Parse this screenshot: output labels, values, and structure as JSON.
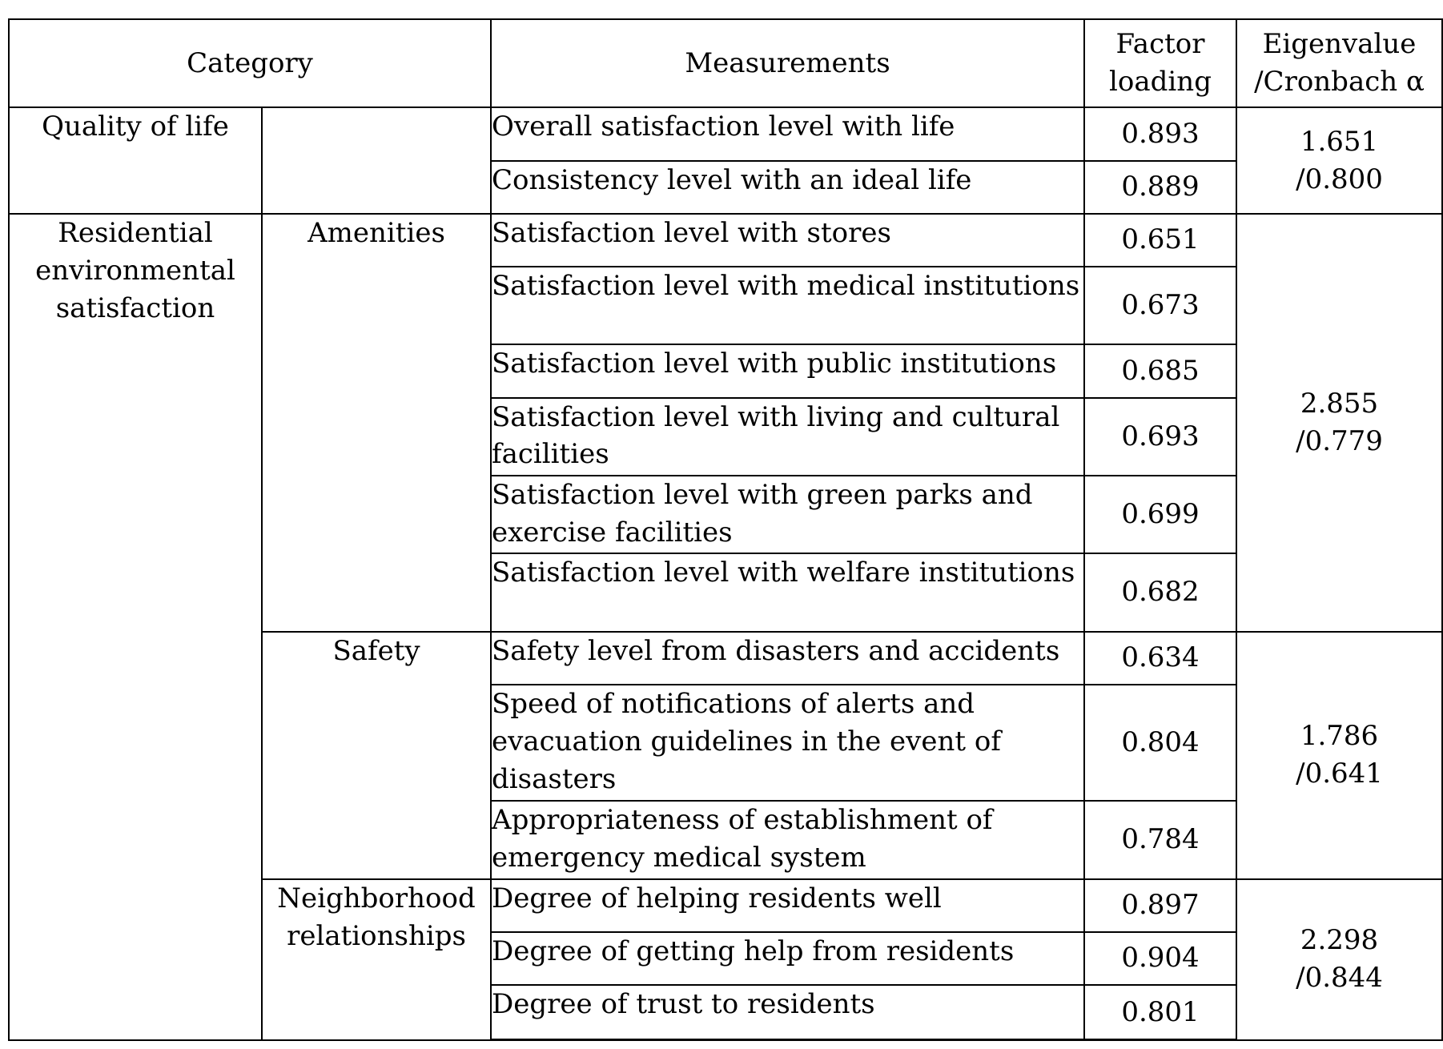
{
  "header": {
    "category": "Category",
    "measurements": "Measurements",
    "factor_loading": [
      "Factor",
      "loading"
    ],
    "eigenvalue": [
      "Eigenvalue",
      "/Cronbach α"
    ]
  },
  "groups": [
    {
      "category": "Quality of life",
      "subcategory": "",
      "eigen": [
        "1.651",
        "/0.800"
      ],
      "items": [
        {
          "measurement": "Overall satisfaction level with life",
          "loading": "0.893"
        },
        {
          "measurement": "Consistency level with an ideal life",
          "loading": "0.889"
        }
      ]
    },
    {
      "category": "Residential environmental satisfaction",
      "subcategory": "Amenities",
      "eigen": [
        "2.855",
        "/0.779"
      ],
      "items": [
        {
          "measurement": "Satisfaction level with stores",
          "loading": "0.651"
        },
        {
          "measurement": "Satisfaction level with medical institutions",
          "loading": "0.673"
        },
        {
          "measurement": "Satisfaction level with public institutions",
          "loading": "0.685"
        },
        {
          "measurement": "Satisfaction level with living and cultural facilities",
          "loading": "0.693"
        },
        {
          "measurement": "Satisfaction level with green parks and exercise facilities",
          "loading": "0.699"
        },
        {
          "measurement": "Satisfaction level with welfare institutions",
          "loading": "0.682"
        }
      ]
    },
    {
      "category": "",
      "subcategory": "Safety",
      "eigen": [
        "1.786",
        "/0.641"
      ],
      "items": [
        {
          "measurement": "Safety level from disasters and accidents",
          "loading": "0.634"
        },
        {
          "measurement": "Speed of notifications of alerts and evacuation guidelines in the event of disasters",
          "loading": "0.804"
        },
        {
          "measurement": "Appropriateness of establishment of emergency medical system",
          "loading": "0.784"
        }
      ]
    },
    {
      "category": "",
      "subcategory": "Neighborhood relationships",
      "eigen": [
        "2.298",
        "/0.844"
      ],
      "items": [
        {
          "measurement": "Degree of helping residents well",
          "loading": "0.897"
        },
        {
          "measurement": "Degree of getting help from residents",
          "loading": "0.904"
        },
        {
          "measurement": "Degree of trust to residents",
          "loading": "0.801"
        }
      ]
    }
  ]
}
